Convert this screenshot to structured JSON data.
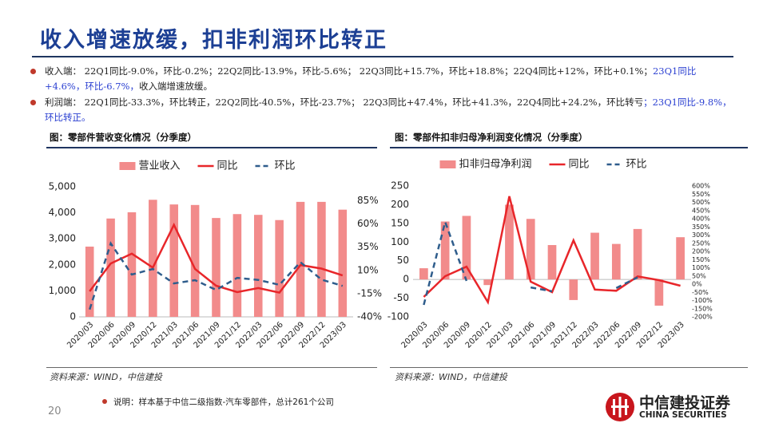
{
  "slide": {
    "title": "收入增速放缓，扣非利润环比转正",
    "bullets": [
      {
        "text": "收入端：  22Q1同比-9.0%，环比-0.2%；22Q2同比-13.9%，环比-5.6%；  22Q3同比+15.7%，环比+18.8%；22Q4同比+12%，环比+0.1%；",
        "highlight": "23Q1同比+4.6%，环比-6.7%，",
        "tail": "收入端增速放缓。"
      },
      {
        "text": "利润端：  22Q1同比-33.3%，环比转正，22Q2同比-40.5%，环比-23.7%；  22Q3同比+47.4%，环比+41.3%，22Q4同比+24.2%，环比转亏",
        "highlight": "；23Q1同比-9.8%，环比转正。",
        "tail": ""
      }
    ],
    "captions": [
      "图：零部件营收变化情况（分季度）",
      "图：零部件扣非归母净利润变化情况（分季度）"
    ],
    "sources": [
      "资料来源：WIND，中信建投",
      "资料来源：WIND，中信建投"
    ],
    "note": "说明：样本基于中信二级指数-汽车零部件，总计261个公司",
    "page_number": "20",
    "logo": {
      "name": "中信建投证券",
      "english": "CHINA SECURITIES"
    }
  },
  "chart_data": [
    {
      "type": "bar",
      "categories": [
        "2020/03",
        "2020/06",
        "2020/09",
        "2020/12",
        "2021/03",
        "2021/06",
        "2021/09",
        "2021/12",
        "2022/03",
        "2022/06",
        "2022/09",
        "2022/12",
        "2023/03"
      ],
      "series": [
        {
          "name": "营业收入",
          "type": "bar",
          "color": "#f28b8b",
          "values": [
            2700,
            3780,
            4020,
            4500,
            4320,
            4300,
            3800,
            3950,
            3920,
            3720,
            4420,
            4420,
            4120
          ]
        },
        {
          "name": "同比",
          "type": "line",
          "axis": "y2",
          "color": "#e8262a",
          "values": [
            -12.5,
            17.5,
            28,
            13,
            59,
            11.5,
            -6.5,
            -13.4,
            -9.0,
            -13.9,
            15.7,
            12,
            4.6
          ]
        },
        {
          "name": "环比",
          "type": "line",
          "axis": "y2",
          "style": "dashed",
          "color": "#2f5d8c",
          "values": [
            -32,
            39,
            5.5,
            11.5,
            -4,
            -0.5,
            -11,
            2,
            -0.2,
            -5.6,
            18.8,
            0.1,
            -6.7
          ]
        }
      ],
      "ylim": [
        0,
        5000
      ],
      "yticks": [
        0,
        {
          "value": 1000,
          "label": "1,000"
        },
        {
          "value": 2000,
          "label": "2,000"
        },
        {
          "value": 3000,
          "label": "3,000"
        },
        {
          "value": 4000,
          "label": "4,000"
        },
        {
          "value": 5000,
          "label": "5,000"
        }
      ],
      "y2lim": [
        -40,
        100
      ],
      "y2ticks": [
        {
          "value": -40,
          "label": "-40%"
        },
        {
          "value": -15,
          "label": "-15%"
        },
        {
          "value": 10,
          "label": "10%"
        },
        {
          "value": 35,
          "label": "35%"
        },
        {
          "value": 60,
          "label": "60%"
        },
        {
          "value": 85,
          "label": "85%"
        }
      ]
    },
    {
      "type": "bar",
      "categories": [
        "2020/03",
        "2020/06",
        "2020/09",
        "2020/12",
        "2021/03",
        "2021/06",
        "2021/09",
        "2021/12",
        "2022/03",
        "2022/06",
        "2022/09",
        "2022/12",
        "2023/03"
      ],
      "series": [
        {
          "name": "扣非归母净利润",
          "type": "bar",
          "color": "#f28b8b",
          "values": [
            30,
            155,
            170,
            -15,
            200,
            162,
            92,
            -55,
            125,
            95,
            135,
            -70,
            113
          ]
        },
        {
          "name": "同比",
          "type": "line",
          "axis": "y2",
          "color": "#e8262a",
          "values": [
            -78,
            49,
            107,
            -110,
            537,
            15,
            -49,
            268,
            -33.3,
            -40.5,
            47.4,
            24.2,
            -9.8
          ]
        },
        {
          "name": "环比",
          "type": "line",
          "axis": "y2",
          "style": "dashed",
          "color": "#2f5d8c",
          "values": [
            -127,
            380,
            20,
            null,
            null,
            -20,
            -44,
            null,
            null,
            -23.7,
            41.3,
            null,
            null
          ]
        }
      ],
      "ylim": [
        -100,
        250
      ],
      "yticks": [
        -100,
        -50,
        0,
        50,
        100,
        150,
        200,
        250
      ],
      "y2lim": [
        -200,
        600
      ],
      "y2ticks": [
        {
          "value": -200,
          "label": "-200%"
        },
        {
          "value": -150,
          "label": "-150%"
        },
        {
          "value": -100,
          "label": "-100%"
        },
        {
          "value": -50,
          "label": "-50%"
        },
        {
          "value": 0,
          "label": "0%"
        },
        {
          "value": 50,
          "label": "50%"
        },
        {
          "value": 100,
          "label": "100%"
        },
        {
          "value": 150,
          "label": "150%"
        },
        {
          "value": 200,
          "label": "200%"
        },
        {
          "value": 250,
          "label": "250%"
        },
        {
          "value": 300,
          "label": "300%"
        },
        {
          "value": 350,
          "label": "350%"
        },
        {
          "value": 400,
          "label": "400%"
        },
        {
          "value": 450,
          "label": "450%"
        },
        {
          "value": 500,
          "label": "500%"
        },
        {
          "value": 550,
          "label": "550%"
        },
        {
          "value": 600,
          "label": "600%"
        }
      ]
    }
  ]
}
